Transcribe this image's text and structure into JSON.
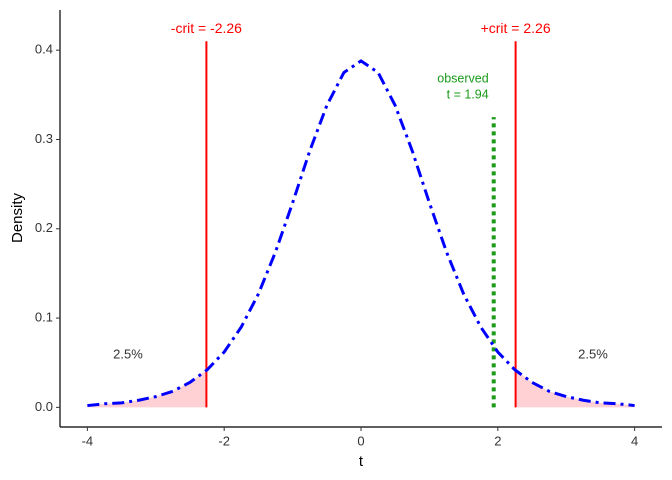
{
  "chart_data": {
    "type": "line",
    "x_label": "t",
    "y_label": "Density",
    "xlim": [
      -4.4,
      4.4
    ],
    "ylim": [
      -0.022,
      0.445
    ],
    "xticks": [
      -4,
      -2,
      0,
      2,
      4
    ],
    "yticks": [
      {
        "value": 0,
        "label": "0.0"
      },
      {
        "value": 0.1,
        "label": "0.1"
      },
      {
        "value": 0.2,
        "label": "0.2"
      },
      {
        "value": 0.3,
        "label": "0.3"
      },
      {
        "value": 0.4,
        "label": "0.4"
      }
    ],
    "x": [
      -4,
      -3.75,
      -3.5,
      -3.25,
      -3,
      -2.75,
      -2.5,
      -2.25,
      -2,
      -1.75,
      -1.5,
      -1.25,
      -1,
      -0.75,
      -0.5,
      -0.25,
      0,
      0.25,
      0.5,
      0.75,
      1,
      1.25,
      1.5,
      1.75,
      2,
      2.25,
      2.5,
      2.75,
      3,
      3.25,
      3.5,
      3.75,
      4
    ],
    "series": [
      {
        "color": "#0000ff",
        "values": [
          0.002,
          0.004,
          0.005,
          0.008,
          0.012,
          0.018,
          0.028,
          0.042,
          0.062,
          0.09,
          0.127,
          0.174,
          0.229,
          0.287,
          0.338,
          0.375,
          0.388,
          0.375,
          0.338,
          0.287,
          0.229,
          0.174,
          0.127,
          0.09,
          0.062,
          0.042,
          0.028,
          0.018,
          0.012,
          0.008,
          0.005,
          0.004,
          0.002
        ]
      }
    ],
    "tail_fill": "#ffd1d4",
    "vlines": [
      {
        "x": -2.26,
        "ymax": 0.41,
        "color": "#ff0000",
        "style": "solid",
        "label": [
          "-crit = -2.26"
        ]
      },
      {
        "x": 2.26,
        "ymax": 0.41,
        "color": "#ff0000",
        "style": "solid",
        "label": [
          "+crit = 2.26"
        ]
      },
      {
        "x": 1.94,
        "ymax": 0.325,
        "color": "#1a9b1a",
        "style": "dotted",
        "label": [
          "observed",
          "t = 1.94"
        ]
      }
    ],
    "tail_labels": [
      "2.5%",
      "2.5%"
    ]
  }
}
